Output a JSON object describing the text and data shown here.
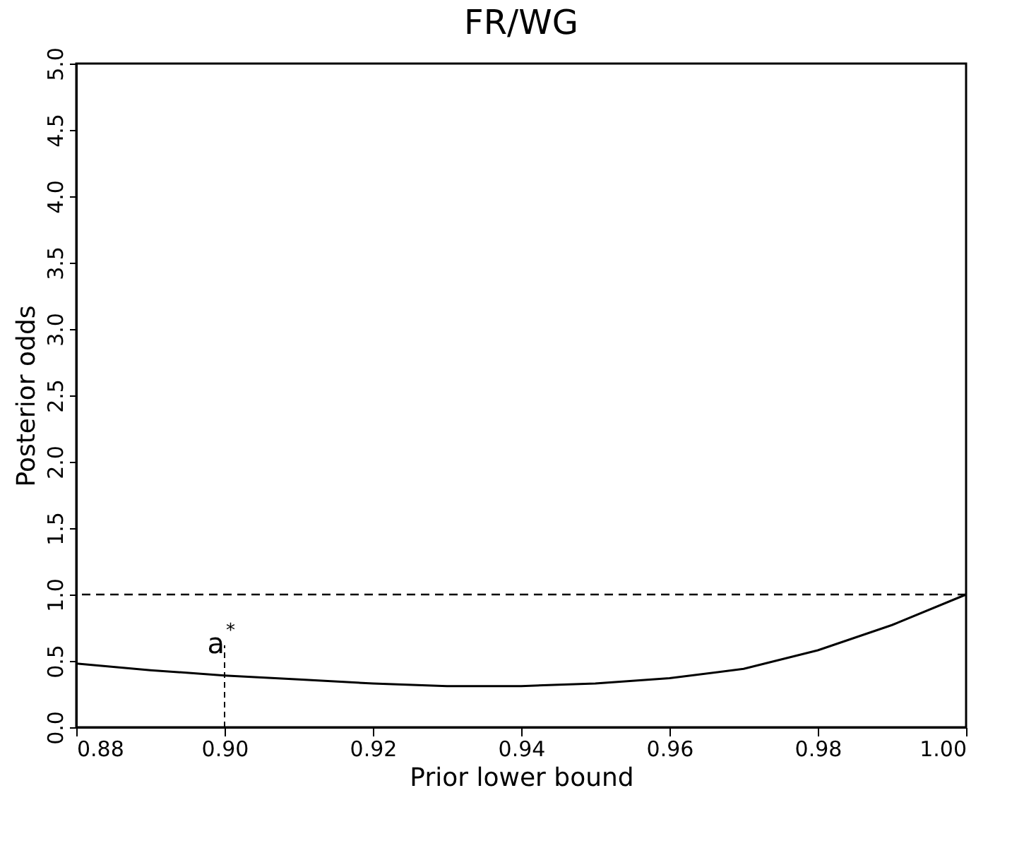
{
  "chart_data": {
    "type": "line",
    "title": "FR/WG",
    "xlabel": "Prior lower bound",
    "ylabel": "Posterior odds",
    "x": [
      0.88,
      0.89,
      0.9,
      0.91,
      0.92,
      0.93,
      0.94,
      0.95,
      0.96,
      0.97,
      0.98,
      0.99,
      1.0
    ],
    "series": [
      {
        "color": "#000000",
        "values": [
          0.48,
          0.43,
          0.39,
          0.36,
          0.33,
          0.31,
          0.31,
          0.33,
          0.37,
          0.44,
          0.58,
          0.77,
          1.0
        ]
      }
    ],
    "xlim": [
      0.88,
      1.0
    ],
    "xticks": [
      0.88,
      {
        "value": 0.9,
        "label": "0.90"
      },
      0.92,
      0.94,
      0.96,
      0.98,
      {
        "value": 1,
        "label": "1.00"
      }
    ],
    "ylim": [
      0,
      5
    ],
    "yticks": [
      {
        "value": 0,
        "label": "0.0"
      },
      0.5,
      {
        "value": 1,
        "label": "1.0"
      },
      1.5,
      {
        "value": 2,
        "label": "2.0"
      },
      2.5,
      {
        "value": 3,
        "label": "3.0"
      },
      3.5,
      {
        "value": 4,
        "label": "4.0"
      },
      4.5,
      {
        "value": 5,
        "label": "5.0"
      }
    ],
    "ref_lines": [
      {
        "axis": "y",
        "value": 1,
        "line_style": "dashed",
        "color": "#000000"
      }
    ],
    "annotations": [
      {
        "text": "a$^{*}$",
        "x": 0.9,
        "y": 0.39
      }
    ],
    "grid": false,
    "marker": "none",
    "line_style": "solid"
  }
}
